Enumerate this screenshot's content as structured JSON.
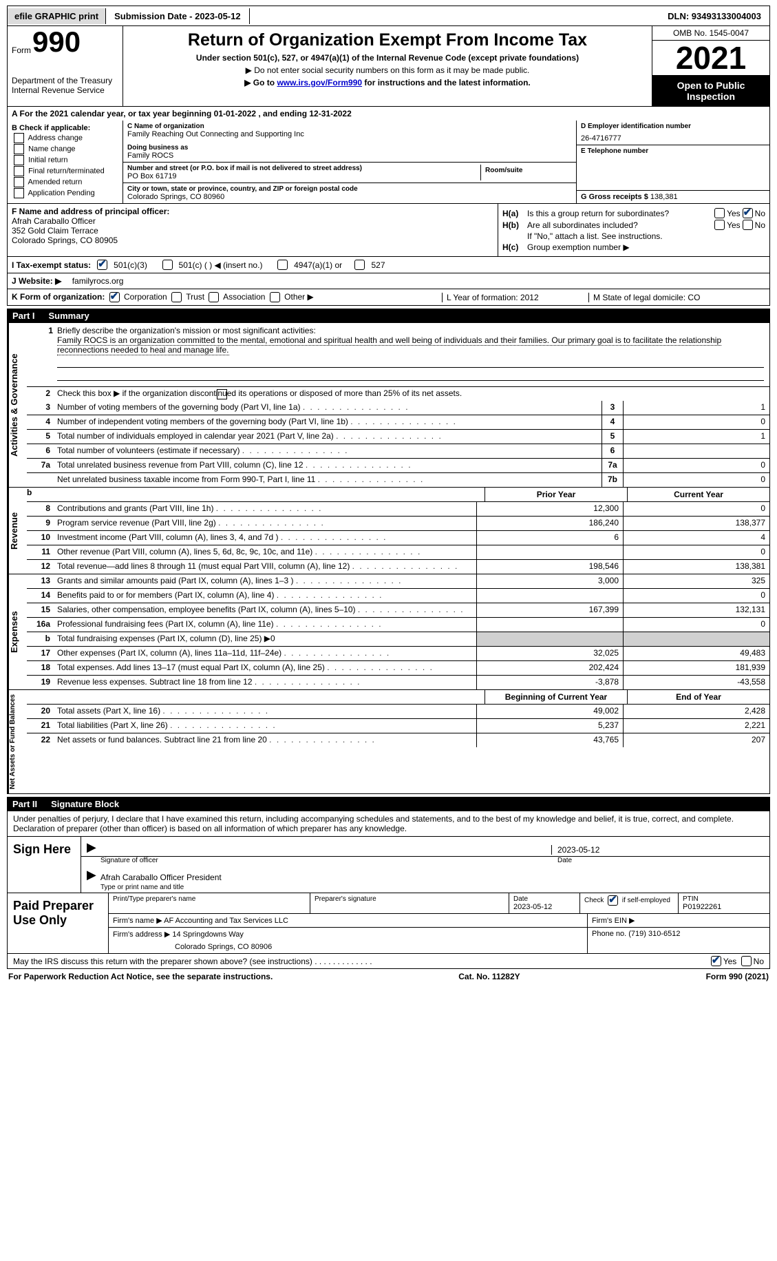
{
  "topbar": {
    "efile": "efile GRAPHIC print",
    "submission": "Submission Date - 2023-05-12",
    "dln": "DLN: 93493133004003"
  },
  "header": {
    "form_small": "Form",
    "form_big": "990",
    "dept": "Department of the Treasury",
    "irs": "Internal Revenue Service",
    "title": "Return of Organization Exempt From Income Tax",
    "sub1": "Under section 501(c), 527, or 4947(a)(1) of the Internal Revenue Code (except private foundations)",
    "sub2a": "▶ Do not enter social security numbers on this form as it may be made public.",
    "sub2b_prefix": "▶ Go to ",
    "sub2b_link": "www.irs.gov/Form990",
    "sub2b_suffix": " for instructions and the latest information.",
    "omb": "OMB No. 1545-0047",
    "year": "2021",
    "inspect": "Open to Public Inspection"
  },
  "row_a": "A For the 2021 calendar year, or tax year beginning 01-01-2022    , and ending 12-31-2022",
  "box_b": {
    "label": "B Check if applicable:",
    "items": [
      "Address change",
      "Name change",
      "Initial return",
      "Final return/terminated",
      "Amended return",
      "Application Pending"
    ]
  },
  "box_c": {
    "name_label": "C Name of organization",
    "name": "Family Reaching Out Connecting and Supporting Inc",
    "dba_label": "Doing business as",
    "dba": "Family ROCS",
    "street_label": "Number and street (or P.O. box if mail is not delivered to street address)",
    "street": "PO Box 61719",
    "room_label": "Room/suite",
    "city_label": "City or town, state or province, country, and ZIP or foreign postal code",
    "city": "Colorado Springs, CO   80960"
  },
  "box_d": {
    "label": "D Employer identification number",
    "value": "26-4716777"
  },
  "box_e": {
    "label": "E Telephone number",
    "value": ""
  },
  "box_g": {
    "label": "G Gross receipts $",
    "value": "138,381"
  },
  "box_f": {
    "label": "F  Name and address of principal officer:",
    "name": "Afrah Caraballo Officer",
    "addr1": "352 Gold Claim Terrace",
    "addr2": "Colorado Springs, CO   80905"
  },
  "box_h": {
    "a_label": "H(a)",
    "a_text": "Is this a group return for subordinates?",
    "b_label": "H(b)",
    "b_text": "Are all subordinates included?",
    "b_note": "If \"No,\" attach a list. See instructions.",
    "c_label": "H(c)",
    "c_text": "Group exemption number ▶"
  },
  "tax_status": {
    "label": "I   Tax-exempt status:",
    "opts": [
      "501(c)(3)",
      "501(c) (  ) ◀ (insert no.)",
      "4947(a)(1) or",
      "527"
    ]
  },
  "website": {
    "label": "J   Website: ▶",
    "value": "familyrocs.org"
  },
  "k_row": {
    "label": "K Form of organization:",
    "opts": [
      "Corporation",
      "Trust",
      "Association",
      "Other ▶"
    ],
    "l": "L Year of formation: 2012",
    "m": "M State of legal domicile: CO"
  },
  "part1": {
    "num": "Part I",
    "title": "Summary"
  },
  "mission": {
    "num": "1",
    "label": "Briefly describe the organization's mission or most significant activities:",
    "text": "Family ROCS is an organization committed to the mental, emotional and spiritual health and well being of individuals and their families. Our primary goal is to facilitate the relationship reconnections needed to heal and manage life."
  },
  "line2": "Check this box ▶       if the organization discontinued its operations or disposed of more than 25% of its net assets.",
  "summary_lines": [
    {
      "n": "3",
      "d": "Number of voting members of the governing body (Part VI, line 1a)",
      "box": "3",
      "v": "1"
    },
    {
      "n": "4",
      "d": "Number of independent voting members of the governing body (Part VI, line 1b)",
      "box": "4",
      "v": "0"
    },
    {
      "n": "5",
      "d": "Total number of individuals employed in calendar year 2021 (Part V, line 2a)",
      "box": "5",
      "v": "1"
    },
    {
      "n": "6",
      "d": "Total number of volunteers (estimate if necessary)",
      "box": "6",
      "v": ""
    },
    {
      "n": "7a",
      "d": "Total unrelated business revenue from Part VIII, column (C), line 12",
      "box": "7a",
      "v": "0"
    },
    {
      "n": "",
      "d": "Net unrelated business taxable income from Form 990-T, Part I, line 11",
      "box": "7b",
      "v": "0"
    }
  ],
  "col_headers": {
    "prior": "Prior Year",
    "current": "Current Year"
  },
  "revenue": [
    {
      "n": "8",
      "d": "Contributions and grants (Part VIII, line 1h)",
      "p": "12,300",
      "c": "0"
    },
    {
      "n": "9",
      "d": "Program service revenue (Part VIII, line 2g)",
      "p": "186,240",
      "c": "138,377"
    },
    {
      "n": "10",
      "d": "Investment income (Part VIII, column (A), lines 3, 4, and 7d )",
      "p": "6",
      "c": "4"
    },
    {
      "n": "11",
      "d": "Other revenue (Part VIII, column (A), lines 5, 6d, 8c, 9c, 10c, and 11e)",
      "p": "",
      "c": "0"
    },
    {
      "n": "12",
      "d": "Total revenue—add lines 8 through 11 (must equal Part VIII, column (A), line 12)",
      "p": "198,546",
      "c": "138,381"
    }
  ],
  "expenses": [
    {
      "n": "13",
      "d": "Grants and similar amounts paid (Part IX, column (A), lines 1–3 )",
      "p": "3,000",
      "c": "325"
    },
    {
      "n": "14",
      "d": "Benefits paid to or for members (Part IX, column (A), line 4)",
      "p": "",
      "c": "0"
    },
    {
      "n": "15",
      "d": "Salaries, other compensation, employee benefits (Part IX, column (A), lines 5–10)",
      "p": "167,399",
      "c": "132,131"
    },
    {
      "n": "16a",
      "d": "Professional fundraising fees (Part IX, column (A), line 11e)",
      "p": "",
      "c": "0"
    },
    {
      "n": "b",
      "d": "Total fundraising expenses (Part IX, column (D), line 25) ▶0",
      "p": "grey",
      "c": "grey"
    },
    {
      "n": "17",
      "d": "Other expenses (Part IX, column (A), lines 11a–11d, 11f–24e)",
      "p": "32,025",
      "c": "49,483"
    },
    {
      "n": "18",
      "d": "Total expenses. Add lines 13–17 (must equal Part IX, column (A), line 25)",
      "p": "202,424",
      "c": "181,939"
    },
    {
      "n": "19",
      "d": "Revenue less expenses. Subtract line 18 from line 12",
      "p": "-3,878",
      "c": "-43,558"
    }
  ],
  "net_headers": {
    "begin": "Beginning of Current Year",
    "end": "End of Year"
  },
  "netassets": [
    {
      "n": "20",
      "d": "Total assets (Part X, line 16)",
      "p": "49,002",
      "c": "2,428"
    },
    {
      "n": "21",
      "d": "Total liabilities (Part X, line 26)",
      "p": "5,237",
      "c": "2,221"
    },
    {
      "n": "22",
      "d": "Net assets or fund balances. Subtract line 21 from line 20",
      "p": "43,765",
      "c": "207"
    }
  ],
  "side_labels": {
    "activities": "Activities & Governance",
    "revenue": "Revenue",
    "expenses": "Expenses",
    "net": "Net Assets or Fund Balances"
  },
  "part2": {
    "num": "Part II",
    "title": "Signature Block"
  },
  "sig": {
    "text": "Under penalties of perjury, I declare that I have examined this return, including accompanying schedules and statements, and to the best of my knowledge and belief, it is true, correct, and complete. Declaration of preparer (other than officer) is based on all information of which preparer has any knowledge.",
    "sign_here": "Sign Here",
    "sig_officer": "Signature of officer",
    "date": "2023-05-12",
    "date_label": "Date",
    "name": "Afrah Caraballo Officer  President",
    "name_label": "Type or print name and title"
  },
  "prep": {
    "label": "Paid Preparer Use Only",
    "print_label": "Print/Type preparer's name",
    "sig_label": "Preparer's signature",
    "date_label": "Date",
    "date": "2023-05-12",
    "check_label": "Check         if self-employed",
    "ptin_label": "PTIN",
    "ptin": "P01922261",
    "firm_name_label": "Firm's name     ▶",
    "firm_name": "AF Accounting and Tax Services LLC",
    "firm_ein_label": "Firm's EIN ▶",
    "firm_addr_label": "Firm's address ▶",
    "firm_addr1": "14 Springdowns Way",
    "firm_addr2": "Colorado Springs, CO   80906",
    "phone_label": "Phone no.",
    "phone": "(719) 310-6512"
  },
  "discuss": "May the IRS discuss this return with the preparer shown above? (see instructions)",
  "footer": {
    "left": "For Paperwork Reduction Act Notice, see the separate instructions.",
    "mid": "Cat. No. 11282Y",
    "right": "Form 990 (2021)"
  },
  "yes": "Yes",
  "no": "No"
}
